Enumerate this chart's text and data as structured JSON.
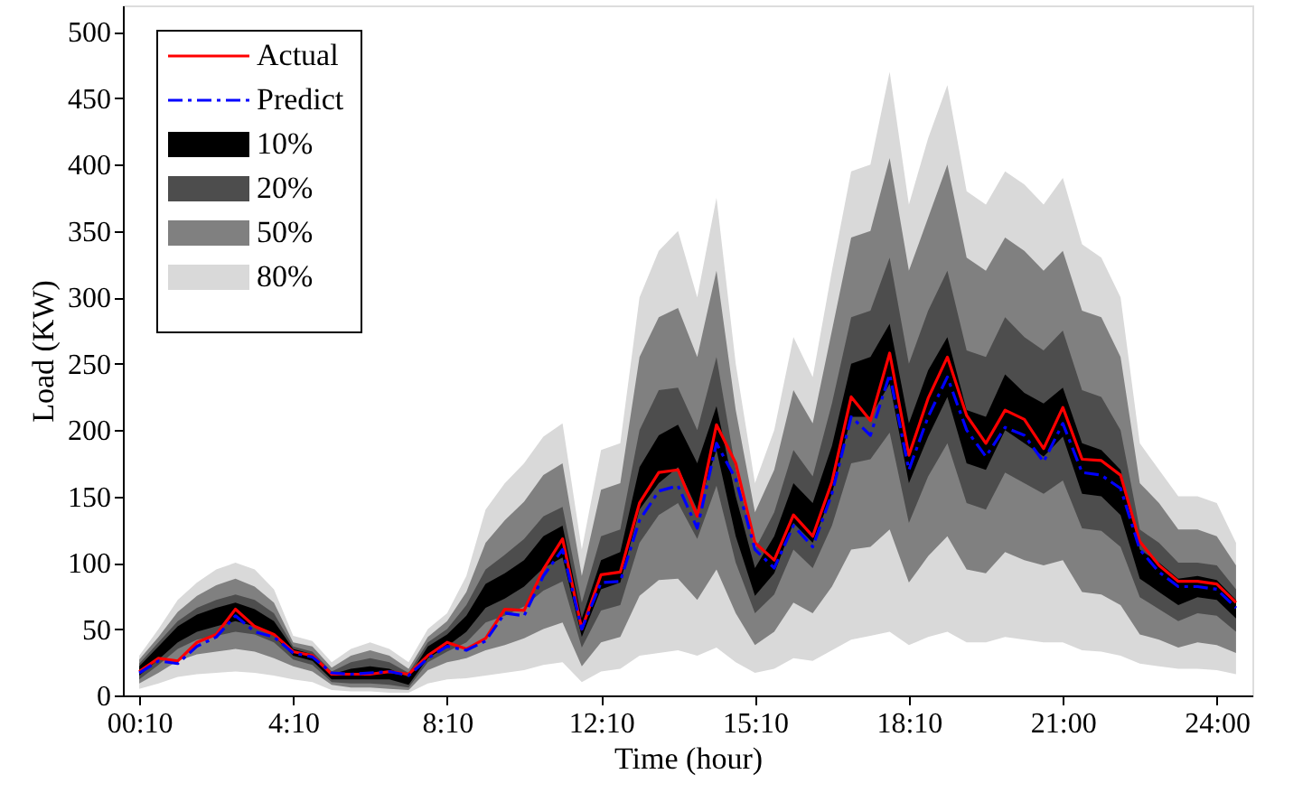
{
  "chart_data": {
    "type": "line",
    "xlabel": "Time (hour)",
    "ylabel": "Load (KW)",
    "categories": [
      "00:10",
      null,
      null,
      null,
      null,
      null,
      null,
      null,
      "4:10",
      null,
      null,
      null,
      null,
      null,
      null,
      null,
      "8:10",
      null,
      null,
      null,
      null,
      null,
      null,
      null,
      "12:10",
      null,
      null,
      null,
      null,
      null,
      null,
      null,
      "15:10",
      null,
      null,
      null,
      null,
      null,
      null,
      null,
      "18:10",
      null,
      null,
      null,
      null,
      null,
      null,
      null,
      "21:00",
      null,
      null,
      null,
      null,
      null,
      null,
      null,
      "24:00",
      null
    ],
    "ylim": [
      0,
      520
    ],
    "yticks": [
      0,
      50,
      100,
      150,
      200,
      250,
      300,
      350,
      400,
      450,
      500
    ],
    "grid": false,
    "legend": "top left",
    "series": [
      {
        "name": "Actual",
        "color": "#ff0000",
        "line_style": "solid",
        "values": [
          18,
          28,
          26,
          40,
          46,
          65,
          52,
          46,
          33,
          30,
          16,
          16,
          16,
          18,
          16,
          30,
          40,
          35,
          43,
          65,
          64,
          95,
          118,
          50,
          91,
          93,
          145,
          168,
          170,
          135,
          204,
          175,
          115,
          102,
          136,
          120,
          161,
          225,
          207,
          258,
          181,
          224,
          255,
          211,
          190,
          215,
          208,
          186,
          217,
          178,
          177,
          166,
          116,
          98,
          86,
          86,
          84,
          70
        ]
      },
      {
        "name": "Predict",
        "color": "#0000ff",
        "line_style": "dashed",
        "values": [
          17,
          26,
          24,
          37,
          44,
          60,
          48,
          44,
          32,
          29,
          17,
          16,
          17,
          18,
          15,
          28,
          37,
          34,
          41,
          62,
          60,
          90,
          110,
          50,
          85,
          86,
          132,
          154,
          158,
          126,
          190,
          163,
          110,
          96,
          128,
          112,
          152,
          210,
          196,
          242,
          170,
          210,
          240,
          200,
          180,
          202,
          196,
          176,
          205,
          168,
          166,
          156,
          110,
          93,
          82,
          82,
          80,
          66
        ]
      },
      {
        "name": "10%",
        "type": "area",
        "color": "#000000",
        "values": [
          null,
          null,
          null,
          null,
          null,
          null,
          null,
          null,
          null,
          null,
          null,
          null,
          null,
          null,
          null,
          null,
          null,
          null,
          null,
          null,
          null,
          null,
          null,
          null,
          null,
          null,
          null,
          null,
          null,
          null,
          null,
          null,
          null,
          null,
          null,
          null,
          null,
          null,
          null,
          null,
          null,
          null,
          null,
          null,
          null,
          null,
          null,
          null,
          null,
          null,
          null,
          null,
          null,
          null,
          null,
          null,
          null,
          null
        ],
        "upper": [
          22,
          37,
          52,
          61,
          66,
          70,
          65,
          56,
          35,
          31,
          16,
          20,
          22,
          20,
          14,
          37,
          46,
          60,
          84,
          92,
          102,
          120,
          128,
          58,
          102,
          108,
          172,
          196,
          204,
          175,
          218,
          150,
          96,
          120,
          160,
          145,
          188,
          250,
          255,
          280,
          205,
          245,
          270,
          215,
          210,
          242,
          228,
          220,
          232,
          190,
          185,
          170,
          110,
          100,
          88,
          90,
          87,
          72
        ],
        "lower": [
          15,
          27,
          40,
          48,
          52,
          56,
          52,
          45,
          30,
          26,
          12,
          12,
          12,
          12,
          8,
          28,
          37,
          48,
          66,
          73,
          82,
          96,
          104,
          44,
          80,
          85,
          140,
          160,
          172,
          140,
          185,
          120,
          75,
          92,
          130,
          115,
          152,
          210,
          210,
          235,
          160,
          195,
          225,
          175,
          170,
          200,
          190,
          180,
          195,
          152,
          150,
          136,
          88,
          78,
          68,
          74,
          72,
          58
        ]
      },
      {
        "name": "20%",
        "type": "area",
        "color": "#4d4d4d",
        "values": [
          null,
          null,
          null,
          null,
          null,
          null,
          null,
          null,
          null,
          null,
          null,
          null,
          null,
          null,
          null,
          null,
          null,
          null,
          null,
          null,
          null,
          null,
          null,
          null,
          null,
          null,
          null,
          null,
          null,
          null,
          null,
          null,
          null,
          null,
          null,
          null,
          null,
          null,
          null,
          null,
          null,
          null,
          null,
          null,
          null,
          null,
          null,
          null,
          null,
          null,
          null,
          null,
          null,
          null,
          null,
          null,
          null,
          null
        ],
        "upper": [
          24,
          40,
          56,
          66,
          72,
          76,
          72,
          62,
          37,
          33,
          18,
          25,
          28,
          25,
          17,
          40,
          50,
          68,
          95,
          106,
          118,
          135,
          142,
          70,
          120,
          125,
          200,
          230,
          232,
          200,
          255,
          170,
          110,
          138,
          185,
          165,
          220,
          285,
          290,
          330,
          250,
          290,
          320,
          260,
          255,
          285,
          270,
          260,
          275,
          230,
          225,
          200,
          125,
          115,
          100,
          100,
          98,
          80
        ],
        "lower": [
          12,
          23,
          35,
          42,
          45,
          48,
          46,
          40,
          27,
          23,
          10,
          9,
          9,
          8,
          6,
          25,
          33,
          40,
          55,
          60,
          67,
          79,
          86,
          36,
          64,
          68,
          115,
          136,
          145,
          118,
          158,
          100,
          62,
          76,
          110,
          96,
          128,
          175,
          178,
          198,
          130,
          165,
          190,
          145,
          140,
          168,
          160,
          152,
          162,
          126,
          124,
          112,
          74,
          65,
          56,
          62,
          60,
          48
        ]
      },
      {
        "name": "50%",
        "type": "area",
        "color": "#808080",
        "values": [
          null,
          null,
          null,
          null,
          null,
          null,
          null,
          null,
          null,
          null,
          null,
          null,
          null,
          null,
          null,
          null,
          null,
          null,
          null,
          null,
          null,
          null,
          null,
          null,
          null,
          null,
          null,
          null,
          null,
          null,
          null,
          null,
          null,
          null,
          null,
          null,
          null,
          null,
          null,
          null,
          null,
          null,
          null,
          null,
          null,
          null,
          null,
          null,
          null,
          null,
          null,
          null,
          null,
          null,
          null,
          null,
          null,
          null
        ],
        "upper": [
          27,
          44,
          63,
          75,
          83,
          88,
          82,
          70,
          40,
          37,
          21,
          30,
          34,
          30,
          20,
          44,
          56,
          78,
          115,
          132,
          146,
          166,
          175,
          90,
          155,
          160,
          255,
          285,
          292,
          255,
          320,
          215,
          138,
          170,
          230,
          205,
          275,
          345,
          350,
          405,
          320,
          360,
          400,
          330,
          320,
          345,
          335,
          320,
          335,
          290,
          285,
          255,
          160,
          145,
          125,
          125,
          120,
          98
        ],
        "lower": [
          9,
          17,
          26,
          31,
          33,
          35,
          33,
          28,
          22,
          18,
          8,
          6,
          6,
          5,
          4,
          19,
          25,
          28,
          34,
          38,
          43,
          50,
          55,
          22,
          40,
          44,
          75,
          87,
          88,
          72,
          95,
          62,
          38,
          48,
          70,
          62,
          82,
          110,
          112,
          125,
          85,
          105,
          120,
          95,
          92,
          108,
          102,
          98,
          102,
          78,
          76,
          68,
          46,
          42,
          36,
          40,
          38,
          32
        ]
      },
      {
        "name": "80%",
        "type": "area",
        "color": "#d9d9d9",
        "values": [
          null,
          null,
          null,
          null,
          null,
          null,
          null,
          null,
          null,
          null,
          null,
          null,
          null,
          null,
          null,
          null,
          null,
          null,
          null,
          null,
          null,
          null,
          null,
          null,
          null,
          null,
          null,
          null,
          null,
          null,
          null,
          null,
          null,
          null,
          null,
          null,
          null,
          null,
          null,
          null,
          null,
          null,
          null,
          null,
          null,
          null,
          null,
          null,
          null,
          null,
          null,
          null,
          null,
          null,
          null,
          null,
          null,
          null
        ],
        "upper": [
          30,
          50,
          72,
          85,
          95,
          100,
          95,
          80,
          45,
          41,
          25,
          35,
          40,
          35,
          25,
          50,
          62,
          90,
          140,
          160,
          175,
          195,
          205,
          110,
          185,
          190,
          300,
          335,
          350,
          300,
          375,
          250,
          160,
          200,
          270,
          240,
          320,
          395,
          400,
          470,
          370,
          420,
          460,
          380,
          370,
          395,
          385,
          370,
          390,
          340,
          330,
          300,
          190,
          170,
          150,
          150,
          145,
          115
        ],
        "lower": [
          5,
          9,
          14,
          16,
          17,
          18,
          17,
          15,
          12,
          10,
          4,
          3,
          3,
          2,
          2,
          9,
          12,
          13,
          15,
          17,
          19,
          23,
          25,
          10,
          18,
          20,
          30,
          32,
          34,
          30,
          36,
          25,
          17,
          20,
          28,
          26,
          34,
          42,
          45,
          48,
          38,
          44,
          48,
          40,
          40,
          44,
          42,
          40,
          40,
          34,
          33,
          30,
          24,
          22,
          20,
          20,
          19,
          16
        ]
      }
    ]
  }
}
